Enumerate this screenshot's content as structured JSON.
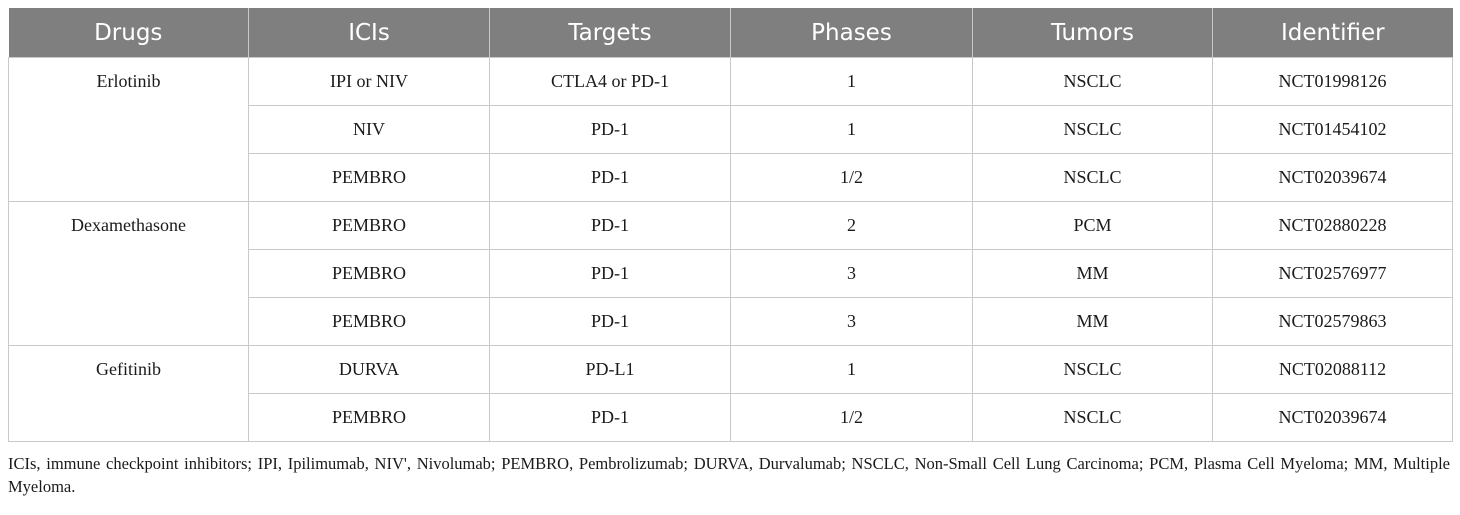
{
  "table": {
    "headers": [
      "Drugs",
      "ICIs",
      "Targets",
      "Phases",
      "Tumors",
      "Identifier"
    ],
    "groups": [
      {
        "drug": "Erlotinib",
        "rows": [
          [
            "IPI or NIV",
            "CTLA4 or PD-1",
            "1",
            "NSCLC",
            "NCT01998126"
          ],
          [
            "NIV",
            "PD-1",
            "1",
            "NSCLC",
            "NCT01454102"
          ],
          [
            "PEMBRO",
            "PD-1",
            "1/2",
            "NSCLC",
            "NCT02039674"
          ]
        ]
      },
      {
        "drug": "Dexamethasone",
        "rows": [
          [
            "PEMBRO",
            "PD-1",
            "2",
            "PCM",
            "NCT02880228"
          ],
          [
            "PEMBRO",
            "PD-1",
            "3",
            "MM",
            "NCT02576977"
          ],
          [
            "PEMBRO",
            "PD-1",
            "3",
            "MM",
            "NCT02579863"
          ]
        ]
      },
      {
        "drug": "Gefitinib",
        "rows": [
          [
            "DURVA",
            "PD-L1",
            "1",
            "NSCLC",
            "NCT02088112"
          ],
          [
            "PEMBRO",
            "PD-1",
            "1/2",
            "NSCLC",
            "NCT02039674"
          ]
        ]
      }
    ]
  },
  "footnote": "ICIs, immune checkpoint inhibitors; IPI, Ipilimumab, NIV', Nivolumab; PEMBRO, Pembrolizumab; DURVA, Durvalumab; NSCLC, Non-Small Cell Lung Carcinoma; PCM, Plasma Cell Myeloma; MM, Multiple Myeloma.",
  "colors": {
    "header_bg": "#7f7f7f",
    "header_text": "#ffffff",
    "grid": "#c9c9c9"
  }
}
